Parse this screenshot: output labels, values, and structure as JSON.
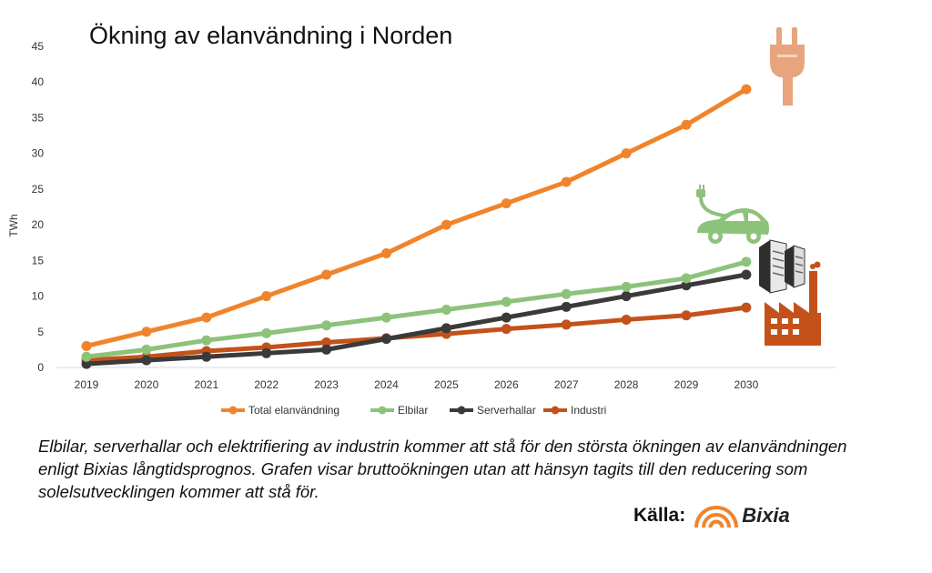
{
  "chart_data": {
    "type": "line",
    "title": "Ökning av elanvändning i Norden",
    "ylabel": "TWh",
    "xlabel": "",
    "ylim": [
      0,
      45
    ],
    "yticks": [
      0,
      5,
      10,
      15,
      20,
      25,
      30,
      35,
      40,
      45
    ],
    "categories": [
      "2019",
      "2020",
      "2021",
      "2022",
      "2023",
      "2024",
      "2025",
      "2026",
      "2027",
      "2028",
      "2029",
      "2030"
    ],
    "grid": false,
    "legend_position": "bottom",
    "series": [
      {
        "name": "Total elanvändning",
        "color": "#F0842C",
        "values": [
          3,
          5,
          7,
          10,
          13,
          16,
          20,
          23,
          26,
          30,
          34,
          39
        ]
      },
      {
        "name": "Elbilar",
        "color": "#8DC27B",
        "values": [
          1.5,
          2.5,
          3.8,
          4.8,
          5.9,
          7,
          8.1,
          9.2,
          10.3,
          11.3,
          12.5,
          14.8
        ]
      },
      {
        "name": "Serverhallar",
        "color": "#3A3A3A",
        "values": [
          0.5,
          1,
          1.5,
          2,
          2.5,
          4,
          5.5,
          7,
          8.5,
          10,
          11.5,
          13
        ]
      },
      {
        "name": "Industri",
        "color": "#C4511A",
        "values": [
          1,
          1.5,
          2.3,
          2.8,
          3.5,
          4.1,
          4.7,
          5.4,
          6,
          6.7,
          7.3,
          8.4
        ]
      }
    ]
  },
  "caption": {
    "line1": "Elbilar, serverhallar och elektrifiering av industrin kommer att stå för den största ökningen av elanvändningen",
    "line2": "enligt Bixias långtidsprognos.  Grafen visar bruttoökningen utan att hänsyn tagits till den reducering som",
    "line3": "solelsutvecklingen kommer att stå för."
  },
  "source": {
    "label": "Källa:",
    "brand": "Bixia",
    "brand_color": "#F0842C"
  },
  "icons": [
    "plug-icon",
    "electric-car-icon",
    "server-icon",
    "factory-icon"
  ]
}
